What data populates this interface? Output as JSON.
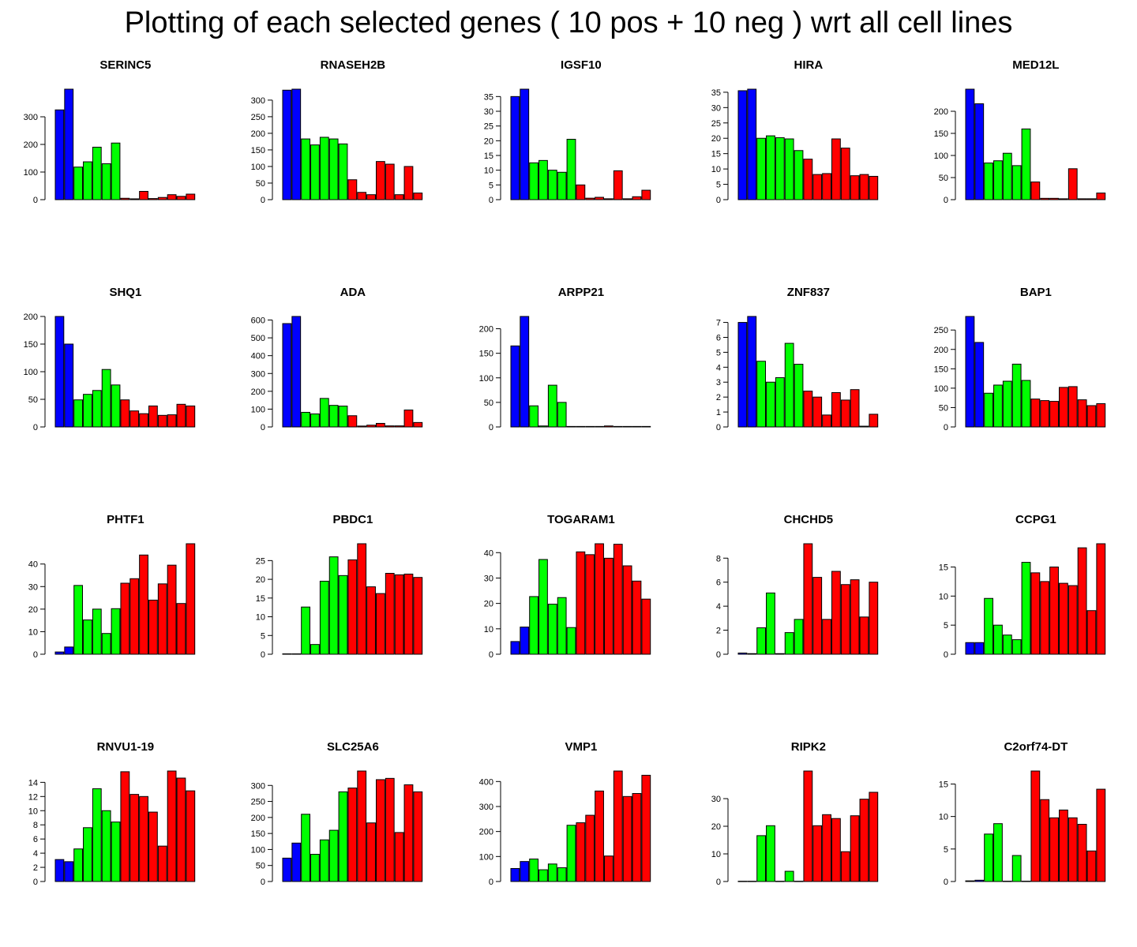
{
  "title": "Plotting of each selected genes ( 10 pos + 10 neg ) wrt all cell lines",
  "colors": {
    "blue": "#0000ff",
    "green": "#00ff00",
    "red": "#ff0000"
  },
  "chart_data": [
    {
      "type": "bar",
      "title": "SERINC5",
      "ylim": [
        0,
        400
      ],
      "ticks": [
        0,
        100,
        200,
        300
      ],
      "values": [
        325,
        400,
        118,
        137,
        190,
        130,
        205,
        5,
        3,
        30,
        4,
        8,
        18,
        12,
        20
      ],
      "colors": [
        "blue",
        "blue",
        "green",
        "green",
        "green",
        "green",
        "green",
        "red",
        "red",
        "red",
        "red",
        "red",
        "red",
        "red",
        "red"
      ]
    },
    {
      "type": "bar",
      "title": "RNASEH2B",
      "ylim": [
        0,
        333
      ],
      "ticks": [
        0,
        50,
        100,
        150,
        200,
        250,
        300
      ],
      "values": [
        330,
        333,
        183,
        165,
        188,
        183,
        168,
        60,
        22,
        15,
        115,
        107,
        15,
        100,
        20
      ],
      "colors": [
        "blue",
        "blue",
        "green",
        "green",
        "green",
        "green",
        "green",
        "red",
        "red",
        "red",
        "red",
        "red",
        "red",
        "red",
        "red"
      ]
    },
    {
      "type": "bar",
      "title": "IGSF10",
      "ylim": [
        0,
        37.5
      ],
      "ticks": [
        0,
        5,
        10,
        15,
        20,
        25,
        30,
        35
      ],
      "values": [
        35,
        37.5,
        12.5,
        13.3,
        10,
        9.3,
        20.5,
        5,
        0.5,
        0.8,
        0.3,
        9.8,
        0.3,
        1,
        3.2
      ],
      "colors": [
        "blue",
        "blue",
        "green",
        "green",
        "green",
        "green",
        "green",
        "red",
        "red",
        "red",
        "red",
        "red",
        "red",
        "red",
        "red"
      ]
    },
    {
      "type": "bar",
      "title": "HIRA",
      "ylim": [
        0,
        36
      ],
      "ticks": [
        0,
        5,
        10,
        15,
        20,
        25,
        30,
        35
      ],
      "values": [
        35.5,
        36,
        20,
        20.8,
        20.2,
        19.8,
        16,
        13.2,
        8.2,
        8.5,
        19.8,
        16.8,
        7.8,
        8.2,
        7.6
      ],
      "colors": [
        "blue",
        "blue",
        "green",
        "green",
        "green",
        "green",
        "green",
        "red",
        "red",
        "red",
        "red",
        "red",
        "red",
        "red",
        "red"
      ]
    },
    {
      "type": "bar",
      "title": "MED12L",
      "ylim": [
        0,
        250
      ],
      "ticks": [
        0,
        50,
        100,
        150,
        200
      ],
      "values": [
        250,
        217,
        83,
        88,
        105,
        77,
        160,
        40,
        3,
        3,
        2,
        70,
        2,
        2,
        15
      ],
      "colors": [
        "blue",
        "blue",
        "green",
        "green",
        "green",
        "green",
        "green",
        "red",
        "red",
        "red",
        "red",
        "red",
        "red",
        "red",
        "red"
      ]
    },
    {
      "type": "bar",
      "title": "SHQ1",
      "ylim": [
        0,
        200
      ],
      "ticks": [
        0,
        50,
        100,
        150,
        200
      ],
      "values": [
        200,
        150,
        49,
        59,
        66,
        104,
        76,
        49,
        29,
        24,
        38,
        21,
        22,
        41,
        38
      ],
      "colors": [
        "blue",
        "blue",
        "green",
        "green",
        "green",
        "green",
        "green",
        "red",
        "red",
        "red",
        "red",
        "red",
        "red",
        "red",
        "red"
      ]
    },
    {
      "type": "bar",
      "title": "ADA",
      "ylim": [
        0,
        620
      ],
      "ticks": [
        0,
        100,
        200,
        300,
        400,
        500,
        600
      ],
      "values": [
        580,
        620,
        82,
        73,
        160,
        121,
        117,
        63,
        5,
        10,
        20,
        6,
        6,
        95,
        25
      ],
      "colors": [
        "blue",
        "blue",
        "green",
        "green",
        "green",
        "green",
        "green",
        "red",
        "red",
        "red",
        "red",
        "red",
        "red",
        "red",
        "red"
      ]
    },
    {
      "type": "bar",
      "title": "ARPP21",
      "ylim": [
        0,
        225
      ],
      "ticks": [
        0,
        50,
        100,
        150,
        200
      ],
      "values": [
        165,
        225,
        43,
        2,
        85,
        50,
        1,
        1,
        1,
        1,
        2,
        1,
        1,
        1,
        1
      ],
      "colors": [
        "blue",
        "blue",
        "green",
        "green",
        "green",
        "green",
        "green",
        "red",
        "red",
        "red",
        "red",
        "red",
        "red",
        "red",
        "red"
      ]
    },
    {
      "type": "bar",
      "title": "ZNF837",
      "ylim": [
        0,
        7.4
      ],
      "ticks": [
        0,
        1,
        2,
        3,
        4,
        5,
        6,
        7
      ],
      "values": [
        7,
        7.4,
        4.4,
        3,
        3.3,
        5.6,
        4.2,
        2.4,
        2,
        0.8,
        2.3,
        1.8,
        2.5,
        0.05,
        0.85
      ],
      "colors": [
        "blue",
        "blue",
        "green",
        "green",
        "green",
        "green",
        "green",
        "red",
        "red",
        "red",
        "red",
        "red",
        "red",
        "red",
        "red"
      ]
    },
    {
      "type": "bar",
      "title": "BAP1",
      "ylim": [
        0,
        285
      ],
      "ticks": [
        0,
        50,
        100,
        150,
        200,
        250
      ],
      "values": [
        285,
        218,
        87,
        108,
        118,
        162,
        120,
        72,
        68,
        66,
        102,
        104,
        70,
        55,
        60
      ],
      "colors": [
        "blue",
        "blue",
        "green",
        "green",
        "green",
        "green",
        "green",
        "red",
        "red",
        "red",
        "red",
        "red",
        "red",
        "red",
        "red"
      ]
    },
    {
      "type": "bar",
      "title": "PHTF1",
      "ylim": [
        0,
        49
      ],
      "ticks": [
        0,
        10,
        20,
        30,
        40
      ],
      "values": [
        1,
        3.2,
        30.5,
        15.2,
        20,
        9.2,
        20.2,
        31.5,
        33.5,
        44,
        24,
        31.2,
        39.5,
        22.5,
        49
      ],
      "colors": [
        "blue",
        "blue",
        "green",
        "green",
        "green",
        "green",
        "green",
        "red",
        "red",
        "red",
        "red",
        "red",
        "red",
        "red",
        "red"
      ]
    },
    {
      "type": "bar",
      "title": "PBDC1",
      "ylim": [
        0,
        29.5
      ],
      "ticks": [
        0,
        5,
        10,
        15,
        20,
        25
      ],
      "values": [
        0.1,
        0.1,
        12.6,
        2.6,
        19.5,
        26,
        21,
        25.2,
        29.5,
        18,
        16.2,
        21.6,
        21.2,
        21.4,
        20.5
      ],
      "colors": [
        "blue",
        "blue",
        "green",
        "green",
        "green",
        "green",
        "green",
        "red",
        "red",
        "red",
        "red",
        "red",
        "red",
        "red",
        "red"
      ]
    },
    {
      "type": "bar",
      "title": "TOGARAM1",
      "ylim": [
        0,
        43.5
      ],
      "ticks": [
        0,
        10,
        20,
        30,
        40
      ],
      "values": [
        5,
        10.7,
        22.7,
        37.3,
        19.7,
        22.3,
        10.5,
        40.3,
        39.2,
        43.5,
        37.8,
        43.3,
        34.8,
        28.8,
        21.7
      ],
      "colors": [
        "blue",
        "blue",
        "green",
        "green",
        "green",
        "green",
        "green",
        "red",
        "red",
        "red",
        "red",
        "red",
        "red",
        "red",
        "red"
      ]
    },
    {
      "type": "bar",
      "title": "CHCHD5",
      "ylim": [
        0,
        9.2
      ],
      "ticks": [
        0,
        2,
        4,
        6,
        8
      ],
      "values": [
        0.1,
        0.05,
        2.2,
        5.1,
        0.05,
        1.8,
        2.9,
        9.2,
        6.4,
        2.9,
        6.9,
        5.8,
        6.2,
        3.1,
        6
      ],
      "colors": [
        "blue",
        "blue",
        "green",
        "green",
        "green",
        "green",
        "green",
        "red",
        "red",
        "red",
        "red",
        "red",
        "red",
        "red",
        "red"
      ]
    },
    {
      "type": "bar",
      "title": "CCPG1",
      "ylim": [
        0,
        19
      ],
      "ticks": [
        0,
        5,
        10,
        15
      ],
      "values": [
        2,
        2,
        9.6,
        5,
        3.3,
        2.5,
        15.8,
        14,
        12.5,
        15,
        12.2,
        11.8,
        18.3,
        7.5,
        19
      ],
      "colors": [
        "blue",
        "blue",
        "green",
        "green",
        "green",
        "green",
        "green",
        "red",
        "red",
        "red",
        "red",
        "red",
        "red",
        "red",
        "red"
      ]
    },
    {
      "type": "bar",
      "title": "RNVU1-19",
      "ylim": [
        0,
        15.6
      ],
      "ticks": [
        0,
        2,
        4,
        6,
        8,
        10,
        12,
        14
      ],
      "values": [
        3.1,
        2.8,
        4.6,
        7.6,
        13.1,
        10,
        8.4,
        15.5,
        12.3,
        12,
        9.8,
        5,
        15.6,
        14.6,
        12.8
      ],
      "colors": [
        "blue",
        "blue",
        "green",
        "green",
        "green",
        "green",
        "green",
        "red",
        "red",
        "red",
        "red",
        "red",
        "red",
        "red",
        "red"
      ]
    },
    {
      "type": "bar",
      "title": "SLC25A6",
      "ylim": [
        0,
        345
      ],
      "ticks": [
        0,
        50,
        100,
        150,
        200,
        250,
        300
      ],
      "values": [
        73,
        120,
        210,
        85,
        130,
        160,
        280,
        292,
        345,
        183,
        318,
        322,
        153,
        302,
        280
      ],
      "colors": [
        "blue",
        "blue",
        "green",
        "green",
        "green",
        "green",
        "green",
        "red",
        "red",
        "red",
        "red",
        "red",
        "red",
        "red",
        "red"
      ]
    },
    {
      "type": "bar",
      "title": "VMP1",
      "ylim": [
        0,
        442
      ],
      "ticks": [
        0,
        100,
        200,
        300,
        400
      ],
      "values": [
        52,
        80,
        90,
        47,
        70,
        55,
        225,
        235,
        265,
        362,
        102,
        442,
        340,
        352,
        425
      ],
      "colors": [
        "blue",
        "blue",
        "green",
        "green",
        "green",
        "green",
        "green",
        "red",
        "red",
        "red",
        "red",
        "red",
        "red",
        "red",
        "red"
      ]
    },
    {
      "type": "bar",
      "title": "RIPK2",
      "ylim": [
        0,
        40
      ],
      "ticks": [
        0,
        10,
        20,
        30
      ],
      "values": [
        0.1,
        0.1,
        16.6,
        20.2,
        0.1,
        3.7,
        0.1,
        40,
        20.2,
        24.2,
        22.8,
        10.8,
        23.8,
        29.8,
        32.3
      ],
      "colors": [
        "blue",
        "blue",
        "green",
        "green",
        "green",
        "green",
        "green",
        "red",
        "red",
        "red",
        "red",
        "red",
        "red",
        "red",
        "red"
      ]
    },
    {
      "type": "bar",
      "title": "C2orf74-DT",
      "ylim": [
        0,
        17
      ],
      "ticks": [
        0,
        5,
        10,
        15
      ],
      "values": [
        0.1,
        0.2,
        7.3,
        8.9,
        0.05,
        4,
        0.05,
        17,
        12.6,
        9.8,
        11,
        9.8,
        8.8,
        4.7,
        14.2
      ],
      "colors": [
        "blue",
        "blue",
        "green",
        "green",
        "green",
        "green",
        "green",
        "red",
        "red",
        "red",
        "red",
        "red",
        "red",
        "red",
        "red"
      ]
    }
  ]
}
